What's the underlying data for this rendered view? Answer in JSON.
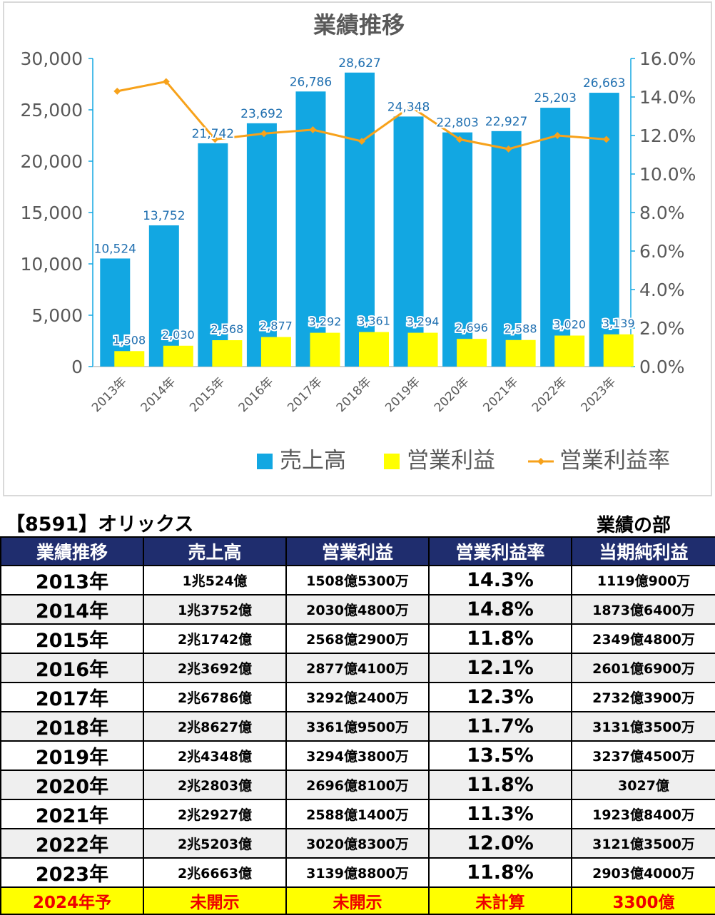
{
  "colors": {
    "sales": "#12a7e2",
    "operating_profit": "#ffff00",
    "margin_line": "#f7a21b",
    "header_bg": "#1f2d6e",
    "forecast_bg": "#ffff00",
    "forecast_text": "#ee0000"
  },
  "chart_data": {
    "type": "bar",
    "title": "業績推移",
    "categories": [
      "2013年",
      "2014年",
      "2015年",
      "2016年",
      "2017年",
      "2018年",
      "2019年",
      "2020年",
      "2021年",
      "2022年",
      "2023年"
    ],
    "series": [
      {
        "name": "売上高",
        "type": "bar",
        "axis": "left",
        "values": [
          10524,
          13752,
          21742,
          23692,
          26786,
          28627,
          24348,
          22803,
          22927,
          25203,
          26663
        ],
        "labels": [
          "10,524",
          "13,752",
          "21,742",
          "23,692",
          "26,786",
          "28,627",
          "24,348",
          "22,803",
          "22,927",
          "25,203",
          "26,663"
        ]
      },
      {
        "name": "営業利益",
        "type": "bar",
        "axis": "left",
        "values": [
          1508,
          2030,
          2568,
          2877,
          3292,
          3361,
          3294,
          2696,
          2588,
          3020,
          3139
        ],
        "labels": [
          "1,508",
          "2,030",
          "2,568",
          "2,877",
          "3,292",
          "3,361",
          "3,294",
          "2,696",
          "2,588",
          "3,020",
          "3,139"
        ]
      },
      {
        "name": "営業利益率",
        "type": "line",
        "axis": "right",
        "values": [
          14.3,
          14.8,
          11.8,
          12.1,
          12.3,
          11.7,
          13.5,
          11.8,
          11.3,
          12.0,
          11.8
        ]
      }
    ],
    "y_left": {
      "range": [
        0,
        30000
      ],
      "ticks": [
        "0",
        "5,000",
        "10,000",
        "15,000",
        "20,000",
        "25,000",
        "30,000"
      ]
    },
    "y_right": {
      "range": [
        0,
        16
      ],
      "ticks": [
        "0.0%",
        "2.0%",
        "4.0%",
        "6.0%",
        "8.0%",
        "10.0%",
        "12.0%",
        "14.0%",
        "16.0%"
      ]
    },
    "grid": false,
    "legend": "bottom"
  },
  "table": {
    "company": "【8591】オリックス",
    "section": "業績の部",
    "headers": [
      "業績推移",
      "売上高",
      "営業利益",
      "営業利益率",
      "当期純利益"
    ],
    "rows": [
      [
        "2013年",
        "1兆524億",
        "1508億5300万",
        "14.3%",
        "1119億900万"
      ],
      [
        "2014年",
        "1兆3752億",
        "2030億4800万",
        "14.8%",
        "1873億6400万"
      ],
      [
        "2015年",
        "2兆1742億",
        "2568億2900万",
        "11.8%",
        "2349億4800万"
      ],
      [
        "2016年",
        "2兆3692億",
        "2877億4100万",
        "12.1%",
        "2601億6900万"
      ],
      [
        "2017年",
        "2兆6786億",
        "3292億2400万",
        "12.3%",
        "2732億3900万"
      ],
      [
        "2018年",
        "2兆8627億",
        "3361億9500万",
        "11.7%",
        "3131億3500万"
      ],
      [
        "2019年",
        "2兆4348億",
        "3294億3800万",
        "13.5%",
        "3237億4500万"
      ],
      [
        "2020年",
        "2兆2803億",
        "2696億8100万",
        "11.8%",
        "3027億"
      ],
      [
        "2021年",
        "2兆2927億",
        "2588億1400万",
        "11.3%",
        "1923億8400万"
      ],
      [
        "2022年",
        "2兆5203億",
        "3020億8300万",
        "12.0%",
        "3121億3500万"
      ],
      [
        "2023年",
        "2兆6663億",
        "3139億8800万",
        "11.8%",
        "2903億4000万"
      ]
    ],
    "forecast": [
      "2024年予",
      "未開示",
      "未開示",
      "未計算",
      "3300億"
    ]
  }
}
